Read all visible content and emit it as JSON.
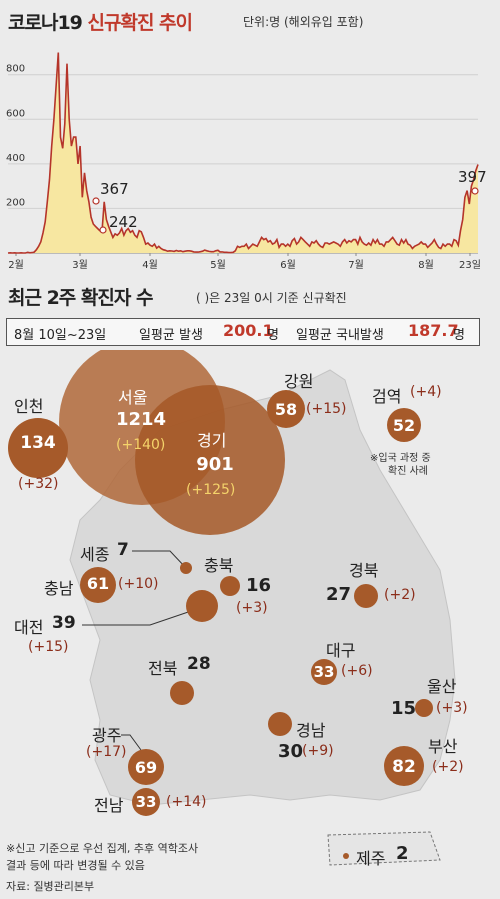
{
  "header": {
    "title_black": "코로나19 ",
    "title_red": "신규확진 추이",
    "unit": "단위:명 (해외유입 포함)"
  },
  "chart_data": {
    "type": "area",
    "title": "코로나19 신규확진 추이",
    "unit": "단위:명 (해외유입 포함)",
    "y_ticks": [
      200,
      400,
      600,
      800
    ],
    "ylim": [
      0,
      920
    ],
    "x_month_labels": [
      "2월",
      "3월",
      "4월",
      "5월",
      "6월",
      "7월",
      "8월",
      "23일"
    ],
    "values": [
      0,
      1,
      0,
      1,
      0,
      0,
      1,
      0,
      0,
      3,
      1,
      2,
      4,
      15,
      30,
      50,
      90,
      140,
      230,
      330,
      480,
      600,
      750,
      900,
      520,
      470,
      580,
      850,
      600,
      480,
      520,
      520,
      400,
      480,
      250,
      360,
      280,
      230,
      160,
      130,
      120,
      110,
      100,
      96,
      230,
      150,
      120,
      95,
      70,
      86,
      80,
      90,
      110,
      80,
      100,
      110,
      93,
      100,
      80,
      70,
      100,
      95,
      70,
      40,
      45,
      35,
      30,
      40,
      22,
      30,
      20,
      15,
      12,
      8,
      10,
      9,
      7,
      11,
      8,
      10,
      6,
      8,
      10,
      10,
      8,
      5,
      4,
      4,
      6,
      8,
      13,
      10,
      7,
      6,
      6,
      10,
      12,
      5,
      5,
      3,
      3,
      2,
      2,
      3,
      10,
      30,
      25,
      30,
      30,
      40,
      20,
      30,
      40,
      35,
      30,
      50,
      70,
      60,
      65,
      50,
      55,
      40,
      45,
      60,
      25,
      40,
      40,
      30,
      40,
      30,
      55,
      65,
      40,
      50,
      70,
      60,
      50,
      40,
      30,
      50,
      45,
      55,
      40,
      30,
      25,
      45,
      45,
      40,
      45,
      50,
      45,
      40,
      30,
      50,
      60,
      45,
      55,
      50,
      60,
      60,
      40,
      70,
      50,
      40,
      35,
      45,
      35,
      60,
      45,
      60,
      40,
      40,
      30,
      50,
      50,
      60,
      70,
      55,
      40,
      35,
      60,
      45,
      60,
      40,
      35,
      20,
      30,
      35,
      40,
      50,
      40,
      40,
      25,
      35,
      45,
      60,
      40,
      25,
      20,
      40,
      30,
      40,
      40,
      30,
      60,
      55,
      35,
      100,
      150,
      250,
      280,
      220,
      300,
      330,
      370,
      397
    ],
    "annotations": [
      {
        "label": "367",
        "value": 367
      },
      {
        "label": "242",
        "value": 242
      },
      {
        "label": "397",
        "value": 397
      }
    ],
    "regions": [
      {
        "name": "인천",
        "total": 134,
        "delta": "(+32)"
      },
      {
        "name": "서울",
        "total": 1214,
        "delta": "(+140)"
      },
      {
        "name": "경기",
        "total": 901,
        "delta": "(+125)"
      },
      {
        "name": "강원",
        "total": 58,
        "delta": "(+15)"
      },
      {
        "name": "검역",
        "total": 52,
        "delta": "(+4)"
      },
      {
        "name": "세종",
        "total": 7,
        "delta": ""
      },
      {
        "name": "충북",
        "total": 16,
        "delta": "(+3)"
      },
      {
        "name": "충남",
        "total": 61,
        "delta": "(+10)"
      },
      {
        "name": "대전",
        "total": 39,
        "delta": "(+15)"
      },
      {
        "name": "경북",
        "total": 27,
        "delta": "(+2)"
      },
      {
        "name": "전북",
        "total": 28,
        "delta": ""
      },
      {
        "name": "대구",
        "total": 33,
        "delta": "(+6)"
      },
      {
        "name": "울산",
        "total": 15,
        "delta": "(+3)"
      },
      {
        "name": "광주",
        "total": 69,
        "delta": "(+17)"
      },
      {
        "name": "경남",
        "total": 30,
        "delta": "(+9)"
      },
      {
        "name": "부산",
        "total": 82,
        "delta": "(+2)"
      },
      {
        "name": "전남",
        "total": 33,
        "delta": "(+14)"
      },
      {
        "name": "제주",
        "total": 2,
        "delta": ""
      }
    ]
  },
  "section2": {
    "title": "최근 2주 확진자 수",
    "sub": "( )은 23일 0시 기준 신규확진",
    "period": "8월 10일~23일",
    "avg_label": "일평균 발생",
    "avg_value": "200.1",
    "avg_unit": "명",
    "domestic_label": "일평균 국내발생",
    "domestic_value": "187.7",
    "domestic_unit": "명"
  },
  "labels": {
    "quarantine_note_1": "※입국 과정 중",
    "quarantine_note_2": "확진 사례"
  },
  "footer": {
    "note1": "※신고 기준으로 우선 집계, 추후 역학조사",
    "note2": "결과 등에 따라 변경될 수 있음",
    "source": "자료: 질병관리본부"
  },
  "colors": {
    "line": "#b5342a",
    "area_fill": "#f7e7a1",
    "bubble": "#a65a2a",
    "bubble_big": "#9b4e24",
    "delta": "#8b2d1a"
  }
}
